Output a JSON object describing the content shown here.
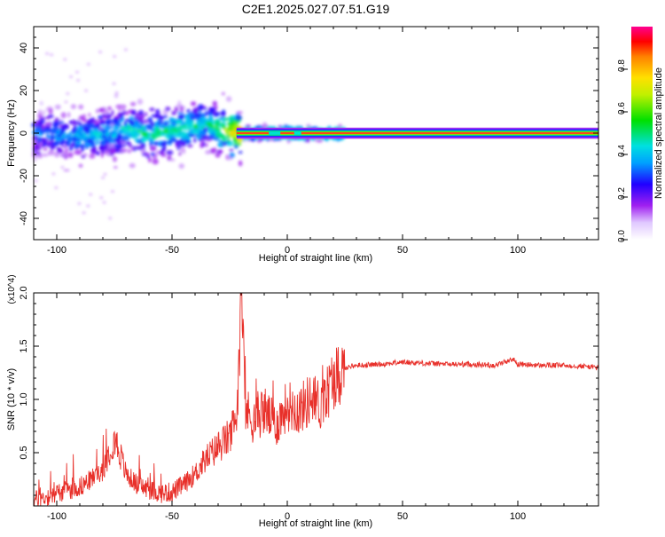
{
  "title": "C2E1.2025.027.07.51.G19",
  "chart_data": [
    {
      "type": "heatmap",
      "xlabel": "Height of straight line (km)",
      "ylabel": "Frequency (Hz)",
      "xlim": [
        -110,
        135
      ],
      "ylim": [
        -50,
        50
      ],
      "xticks": [
        -100,
        -50,
        0,
        50,
        100
      ],
      "yticks": [
        -40,
        -20,
        0,
        20,
        40
      ],
      "colorbar": {
        "label": "Normalized spectral amplitude",
        "range": [
          0,
          1
        ],
        "ticks": [
          "0.0",
          "0.2",
          "0.4",
          "0.6",
          "0.8"
        ]
      },
      "ridge": {
        "x": [
          -110,
          -100,
          -90,
          -80,
          -70,
          -60,
          -50,
          -40,
          -35,
          -30,
          -25,
          -20,
          0,
          20,
          60,
          100,
          135
        ],
        "frequency": [
          0,
          -1,
          -2,
          0,
          2,
          -1,
          1,
          3,
          5,
          2,
          1,
          0,
          0,
          0,
          0,
          0,
          0
        ],
        "amplitude": [
          0.3,
          0.35,
          0.4,
          0.4,
          0.45,
          0.5,
          0.5,
          0.5,
          0.45,
          0.55,
          0.7,
          0.95,
          0.95,
          0.95,
          0.95,
          0.95,
          0.95
        ]
      }
    },
    {
      "type": "line",
      "xlabel": "Height of straight line (km)",
      "ylabel": "SNR (10 * v/v)",
      "yscale_label": "(x10^4)",
      "xlim": [
        -110,
        135
      ],
      "ylim": [
        0,
        2.0
      ],
      "xticks": [
        -100,
        -50,
        0,
        50,
        100
      ],
      "yticks": [
        "0.5",
        "1.0",
        "1.5",
        "2.0"
      ],
      "color": "#e8302a",
      "series": [
        {
          "name": "SNR",
          "x": [
            -110,
            -105,
            -100,
            -95,
            -90,
            -85,
            -80,
            -75,
            -72,
            -70,
            -65,
            -60,
            -55,
            -50,
            -45,
            -40,
            -35,
            -30,
            -25,
            -22,
            -20,
            -18,
            -15,
            -10,
            -5,
            0,
            5,
            10,
            15,
            20,
            25,
            30,
            40,
            50,
            60,
            70,
            80,
            90,
            98,
            100,
            110,
            120,
            130,
            135
          ],
          "values": [
            0.05,
            0.08,
            0.12,
            0.15,
            0.18,
            0.25,
            0.35,
            0.65,
            0.45,
            0.3,
            0.2,
            0.15,
            0.12,
            0.13,
            0.2,
            0.3,
            0.45,
            0.55,
            0.65,
            0.8,
            2.0,
            0.9,
            0.8,
            0.9,
            0.75,
            0.95,
            0.9,
            1.0,
            0.95,
            1.2,
            1.3,
            1.32,
            1.33,
            1.35,
            1.34,
            1.33,
            1.33,
            1.32,
            1.38,
            1.33,
            1.32,
            1.32,
            1.31,
            1.3
          ]
        }
      ]
    }
  ]
}
